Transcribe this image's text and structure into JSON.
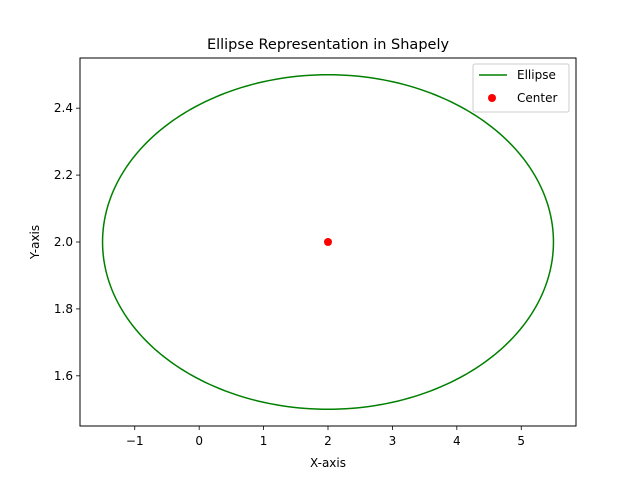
{
  "chart_data": {
    "type": "line",
    "title": "Ellipse Representation in Shapely",
    "xlabel": "X-axis",
    "ylabel": "Y-axis",
    "xlim": [
      -1.85,
      5.85
    ],
    "ylim": [
      1.45,
      2.55
    ],
    "x_ticks": [
      -1,
      0,
      1,
      2,
      3,
      4,
      5
    ],
    "x_tick_labels": [
      "−1",
      "0",
      "1",
      "2",
      "3",
      "4",
      "5"
    ],
    "y_ticks": [
      1.6,
      1.8,
      2.0,
      2.2,
      2.4
    ],
    "y_tick_labels": [
      "1.6",
      "1.8",
      "2.0",
      "2.2",
      "2.4"
    ],
    "grid": false,
    "legend_position": "top-right",
    "series": [
      {
        "name": "Ellipse",
        "kind": "line",
        "color": "#008000",
        "center": [
          2,
          2
        ],
        "semi_axis_x": 3.5,
        "semi_axis_y": 0.5
      },
      {
        "name": "Center",
        "kind": "scatter",
        "color": "#ff0000",
        "x": [
          2
        ],
        "y": [
          2
        ]
      }
    ]
  }
}
